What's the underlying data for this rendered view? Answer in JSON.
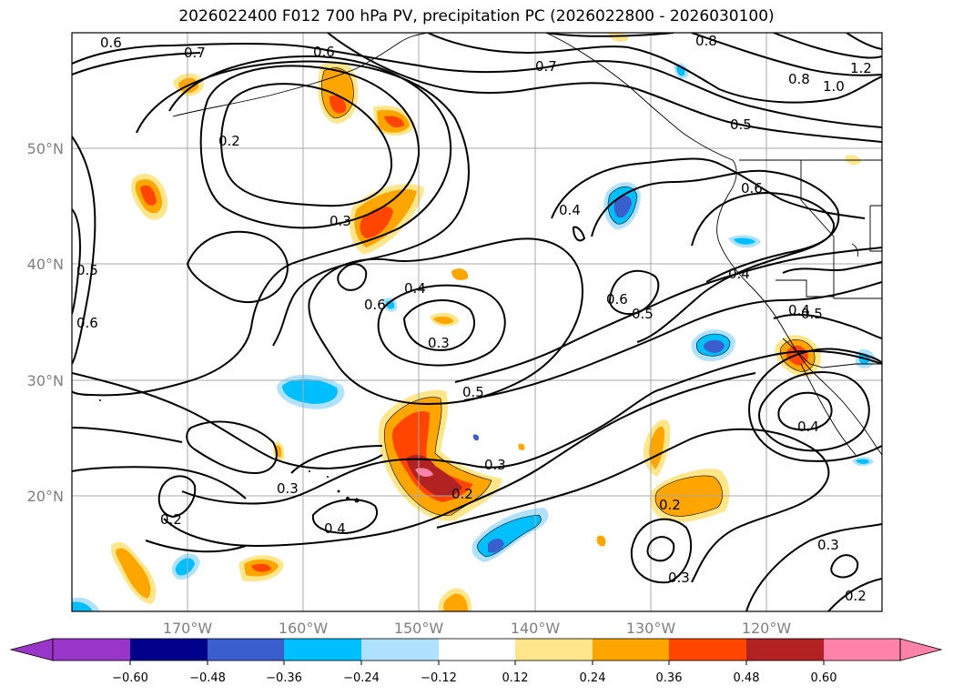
{
  "chart_data": {
    "type": "map-contour",
    "title": "2026022400 F012 700 hPa PV, precipitation PC (2026022800 - 2026030100)",
    "lon_ticks": [
      "170°W",
      "160°W",
      "150°W",
      "140°W",
      "130°W",
      "120°W"
    ],
    "lat_ticks": [
      "50°N",
      "40°N",
      "30°N",
      "20°N"
    ],
    "lon_range": [
      -180,
      -110
    ],
    "lat_range": [
      10,
      60
    ],
    "colorbar": {
      "ticks": [
        "−0.60",
        "−0.48",
        "−0.36",
        "−0.24",
        "−0.12",
        "0.12",
        "0.24",
        "0.36",
        "0.48",
        "0.60"
      ],
      "colors": [
        "#9a35c9",
        "#00008b",
        "#3a5fcd",
        "#00bfff",
        "#b0e2ff",
        "#ffffff",
        "#ffe68a",
        "#ffa500",
        "#ff4500",
        "#b22222",
        "#ff82ab",
        "#ff82ab"
      ]
    },
    "contour_labels": [
      {
        "text": "0.6"
      },
      {
        "text": "0.7"
      },
      {
        "text": "0.6"
      },
      {
        "text": "0.7"
      },
      {
        "text": "0.8"
      },
      {
        "text": "1.0"
      },
      {
        "text": "1.2"
      },
      {
        "text": "0.8"
      },
      {
        "text": "0.5"
      },
      {
        "text": "0.2"
      },
      {
        "text": "0.6"
      },
      {
        "text": "0.3"
      },
      {
        "text": "0.4"
      },
      {
        "text": "0.5"
      },
      {
        "text": "0.6"
      },
      {
        "text": "0.6"
      },
      {
        "text": "0.4"
      },
      {
        "text": "0.3"
      },
      {
        "text": "0.6"
      },
      {
        "text": "0.5"
      },
      {
        "text": "0.4"
      },
      {
        "text": "0.4"
      },
      {
        "text": "0.5"
      },
      {
        "text": "0.5"
      },
      {
        "text": "0.3"
      },
      {
        "text": "0.2"
      },
      {
        "text": "0.3"
      },
      {
        "text": "0.2"
      },
      {
        "text": "0.4"
      },
      {
        "text": "0.2"
      },
      {
        "text": "0.3"
      },
      {
        "text": "0.4"
      },
      {
        "text": "0.3"
      },
      {
        "text": "0.2"
      }
    ]
  }
}
